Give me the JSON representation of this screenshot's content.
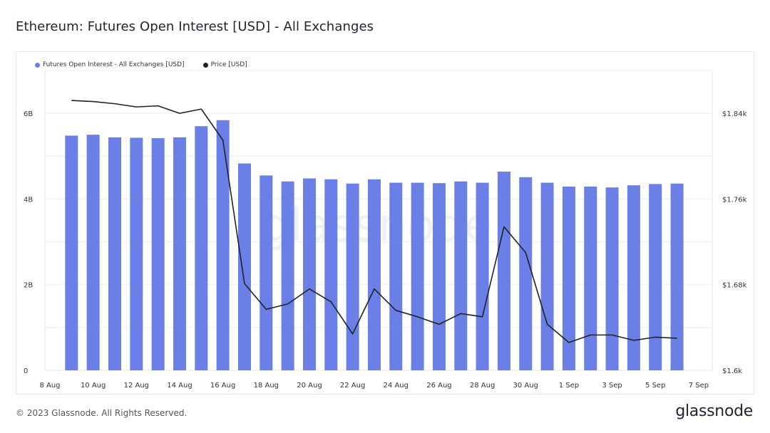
{
  "page": {
    "title": "Ethereum: Futures Open Interest [USD] - All Exchanges",
    "copyright": "© 2023 Glassnode. All Rights Reserved.",
    "logo_text": "glassnode",
    "watermark_text": "glassnode"
  },
  "chart_data": {
    "type": "bar",
    "title": "Ethereum: Futures Open Interest [USD] - All Exchanges",
    "x_tick_labels": [
      "8 Aug",
      "10 Aug",
      "12 Aug",
      "14 Aug",
      "16 Aug",
      "18 Aug",
      "20 Aug",
      "22 Aug",
      "24 Aug",
      "26 Aug",
      "28 Aug",
      "30 Aug",
      "1 Sep",
      "3 Sep",
      "5 Sep",
      "7 Sep"
    ],
    "categories": [
      "9 Aug",
      "10 Aug",
      "11 Aug",
      "12 Aug",
      "13 Aug",
      "14 Aug",
      "15 Aug",
      "16 Aug",
      "17 Aug",
      "18 Aug",
      "19 Aug",
      "20 Aug",
      "21 Aug",
      "22 Aug",
      "23 Aug",
      "24 Aug",
      "25 Aug",
      "26 Aug",
      "27 Aug",
      "28 Aug",
      "29 Aug",
      "30 Aug",
      "31 Aug",
      "1 Sep",
      "2 Sep",
      "3 Sep",
      "4 Sep",
      "5 Sep",
      "6 Sep"
    ],
    "series": [
      {
        "name": "Futures Open Interest - All Exchanges [USD]",
        "axis": "left",
        "kind": "bar",
        "color": "#6a80e6",
        "values": [
          5.48,
          5.5,
          5.44,
          5.43,
          5.42,
          5.44,
          5.7,
          5.84,
          4.83,
          4.55,
          4.41,
          4.48,
          4.46,
          4.36,
          4.46,
          4.38,
          4.38,
          4.37,
          4.41,
          4.38,
          4.64,
          4.51,
          4.38,
          4.29,
          4.29,
          4.27,
          4.32,
          4.35,
          4.36
        ]
      },
      {
        "name": "Price [USD]",
        "axis": "right",
        "kind": "line",
        "color": "#222222",
        "x_start_offset": -1,
        "values": [
          1852,
          1851,
          1849,
          1846,
          1847,
          1840,
          1844,
          1815,
          1681,
          1657,
          1662,
          1676,
          1664,
          1634,
          1676,
          1656,
          1650,
          1643,
          1653,
          1650,
          1734,
          1710,
          1643,
          1626,
          1633,
          1633,
          1628,
          1631,
          1630
        ]
      }
    ],
    "left_axis": {
      "ticks": [
        "0",
        "2B",
        "4B",
        "6B"
      ],
      "tick_values": [
        0,
        2,
        4,
        6
      ],
      "ylim": [
        0,
        7
      ],
      "unit": "billions USD"
    },
    "right_axis": {
      "ticks": [
        "$1.6k",
        "$1.68k",
        "$1.76k",
        "$1.84k"
      ],
      "tick_values": [
        1600,
        1680,
        1760,
        1840
      ],
      "ylim": [
        1600,
        1880
      ]
    },
    "grid": true,
    "legend_position": "top-left"
  }
}
